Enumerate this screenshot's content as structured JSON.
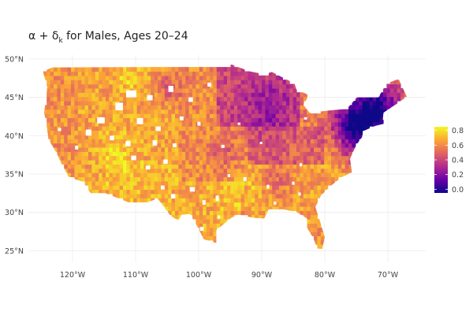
{
  "title": {
    "prefix": "α + δ",
    "subscript": "k",
    "suffix": " for Males, Ages  20–24"
  },
  "map": {
    "projection": "equirectangular",
    "lon_range": [
      -127,
      -64
    ],
    "lat_range": [
      23.5,
      50.5
    ],
    "x_ticks": [
      {
        "lon": -120,
        "label": "120°W"
      },
      {
        "lon": -110,
        "label": "110°W"
      },
      {
        "lon": -100,
        "label": "100°W"
      },
      {
        "lon": -90,
        "label": "90°W"
      },
      {
        "lon": -80,
        "label": "80°W"
      },
      {
        "lon": -70,
        "label": "70°W"
      }
    ],
    "y_ticks": [
      {
        "lat": 25,
        "label": "25°N"
      },
      {
        "lat": 30,
        "label": "30°N"
      },
      {
        "lat": 35,
        "label": "35°N"
      },
      {
        "lat": 40,
        "label": "40°N"
      },
      {
        "lat": 45,
        "label": "45°N"
      },
      {
        "lat": 50,
        "label": "50°N"
      }
    ],
    "grid": true,
    "fill_variable": "α + δk by county",
    "regions": [
      {
        "name": "Pacific coast",
        "value": 0.62
      },
      {
        "name": "Mountain West",
        "value": 0.66
      },
      {
        "name": "Southwest",
        "value": 0.7
      },
      {
        "name": "Great Plains",
        "value": 0.6
      },
      {
        "name": "Texas",
        "value": 0.68
      },
      {
        "name": "Upper Midwest",
        "value": 0.42
      },
      {
        "name": "Ohio Valley",
        "value": 0.5
      },
      {
        "name": "Southeast",
        "value": 0.65
      },
      {
        "name": "Florida",
        "value": 0.62
      },
      {
        "name": "Mid-Atlantic",
        "value": 0.12
      },
      {
        "name": "New England",
        "value": 0.08
      }
    ]
  },
  "legend": {
    "position": "right",
    "ticks": [
      {
        "value": 0.8,
        "label": "0.8"
      },
      {
        "value": 0.6,
        "label": "0.6"
      },
      {
        "value": 0.4,
        "label": "0.4"
      },
      {
        "value": 0.2,
        "label": "0.2"
      },
      {
        "value": 0.0,
        "label": "0.0"
      }
    ],
    "range": [
      -0.05,
      0.85
    ],
    "colormap": [
      "#0d0887",
      "#6a00a8",
      "#b12a90",
      "#e16462",
      "#fca636",
      "#f0f921"
    ]
  }
}
